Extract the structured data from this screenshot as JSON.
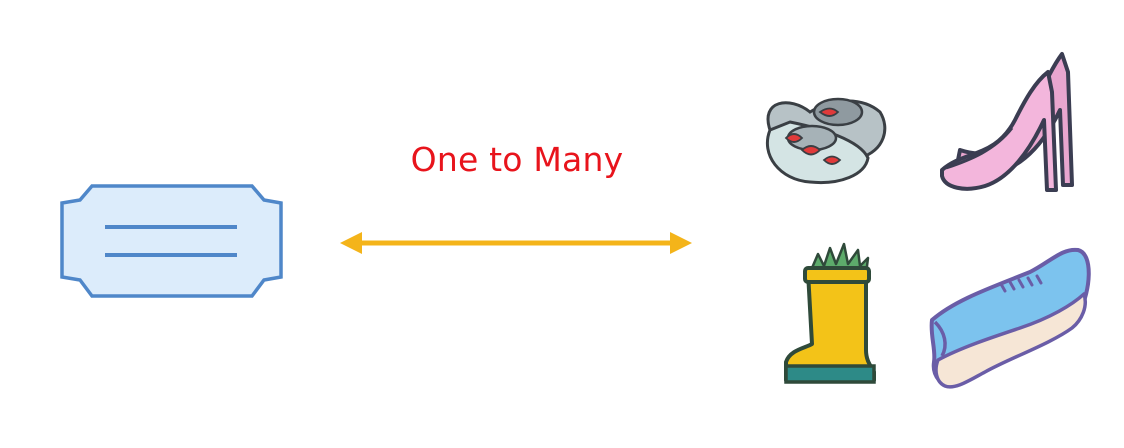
{
  "relation": {
    "label": "One to Many",
    "label_color": "#e8141c",
    "arrow_color": "#f4b41a"
  },
  "one_side": {
    "icon": "tag-icon",
    "fill": "#dcecfb",
    "stroke": "#4f87c9"
  },
  "many_side": {
    "items": [
      {
        "icon": "baby-shoes-icon"
      },
      {
        "icon": "high-heel-icon"
      },
      {
        "icon": "rain-boot-icon"
      },
      {
        "icon": "sneaker-icon"
      }
    ]
  }
}
